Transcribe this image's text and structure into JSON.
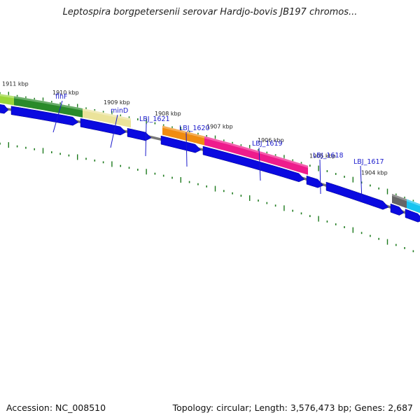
{
  "title": "Leptospira borgpetersenii serovar Hardjo-bovis JB197 chromos...",
  "footer": {
    "accession": "Accession: NC_008510",
    "stats": "Topology: circular; Length: 3,576,473 bp; Genes: 2,687"
  },
  "colors": {
    "cds_arrow": "#0a0ae0",
    "backbone": "#777777",
    "tick_mark": "#1d7a1d",
    "label_text": "#1a1acc"
  },
  "kbp_ticks": [
    "1911 kbp",
    "1910 kbp",
    "1909 kbp",
    "1908 kbp",
    "1907 kbp",
    "1906 kbp",
    "1905 kbp",
    "1904 kbp"
  ],
  "gene_labels": [
    "flhF",
    "minD",
    "LBJ_1621",
    "LBJ_1620",
    "LBJ_1619",
    "LBJ_1618",
    "LBJ_1617"
  ],
  "feature_colors": [
    "#9ad63a",
    "#2a8a2a",
    "#ebe39a",
    "#f08c10",
    "#ee1c8c",
    "#666666",
    "#18c4f0"
  ]
}
